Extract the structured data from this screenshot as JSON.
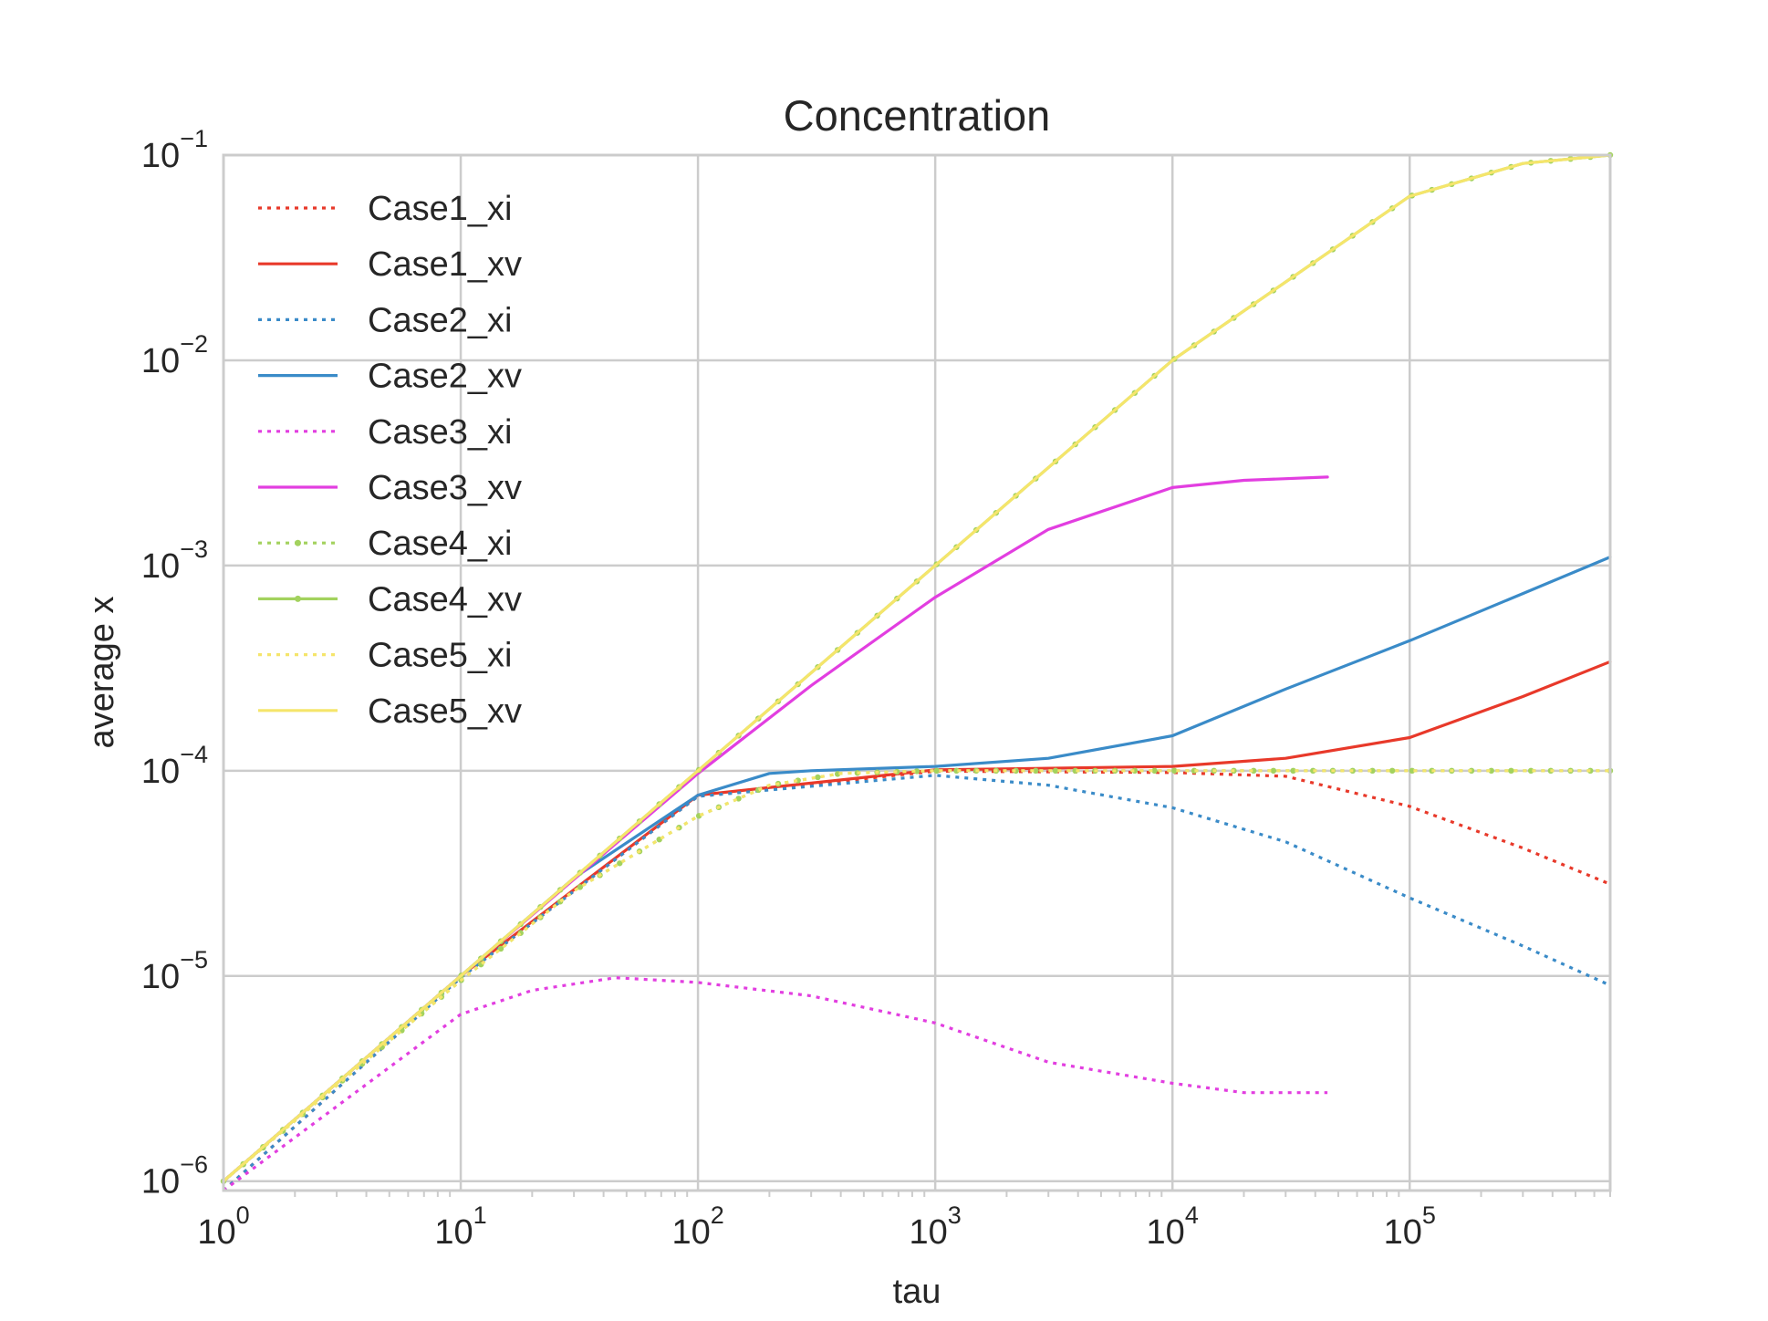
{
  "chart_data": {
    "type": "line",
    "title": "Concentration",
    "xlabel": "tau",
    "ylabel": "average x",
    "xscale": "log",
    "yscale": "log",
    "xlim": [
      1,
      700000
    ],
    "ylim": [
      9e-07,
      0.1
    ],
    "grid": true,
    "legend_position": "top-left",
    "x_ticks": [
      {
        "base": "10",
        "exp": "0"
      },
      {
        "base": "10",
        "exp": "1"
      },
      {
        "base": "10",
        "exp": "2"
      },
      {
        "base": "10",
        "exp": "3"
      },
      {
        "base": "10",
        "exp": "4"
      },
      {
        "base": "10",
        "exp": "5"
      }
    ],
    "y_ticks": [
      {
        "base": "10",
        "exp": "−6"
      },
      {
        "base": "10",
        "exp": "−5"
      },
      {
        "base": "10",
        "exp": "−4"
      },
      {
        "base": "10",
        "exp": "−3"
      },
      {
        "base": "10",
        "exp": "−2"
      },
      {
        "base": "10",
        "exp": "−1"
      }
    ],
    "series": [
      {
        "name": "Case1_xi",
        "color": "#e8392a",
        "style": "dotted",
        "marker": false,
        "x": [
          1,
          10,
          100,
          1000,
          10000,
          30000,
          100000,
          300000,
          700000
        ],
        "y": [
          9e-07,
          9.8e-06,
          7.5e-05,
          9.95e-05,
          9.8e-05,
          9.4e-05,
          6.7e-05,
          4.2e-05,
          2.8e-05
        ]
      },
      {
        "name": "Case1_xv",
        "color": "#e8392a",
        "style": "solid",
        "marker": false,
        "x": [
          1,
          10,
          100,
          1000,
          10000,
          30000,
          100000,
          300000,
          700000
        ],
        "y": [
          1e-06,
          1e-05,
          7.6e-05,
          0.000101,
          0.000105,
          0.000115,
          0.000145,
          0.00023,
          0.00034
        ]
      },
      {
        "name": "Case2_xi",
        "color": "#3a8bc8",
        "style": "dotted",
        "marker": false,
        "x": [
          1,
          10,
          100,
          1000,
          3000,
          10000,
          30000,
          100000,
          300000,
          700000
        ],
        "y": [
          9e-07,
          9.8e-06,
          7.5e-05,
          9.5e-05,
          8.5e-05,
          6.6e-05,
          4.5e-05,
          2.4e-05,
          1.4e-05,
          9e-06
        ]
      },
      {
        "name": "Case2_xv",
        "color": "#3a8bc8",
        "style": "solid",
        "marker": false,
        "x": [
          1,
          10,
          30,
          100,
          200,
          300,
          1000,
          3000,
          10000,
          30000,
          100000,
          300000,
          700000
        ],
        "y": [
          1e-06,
          1e-05,
          3e-05,
          7.6e-05,
          9.7e-05,
          0.0001,
          0.000105,
          0.000115,
          0.000148,
          0.00025,
          0.00043,
          0.00073,
          0.0011
        ]
      },
      {
        "name": "Case3_xi",
        "color": "#e23ee0",
        "style": "dotted",
        "marker": false,
        "x": [
          1,
          10,
          20,
          45,
          100,
          300,
          1000,
          3000,
          10000,
          20000,
          45000
        ],
        "y": [
          9e-07,
          6.5e-06,
          8.5e-06,
          9.8e-06,
          9.3e-06,
          8e-06,
          5.9e-06,
          3.8e-06,
          3e-06,
          2.7e-06,
          2.7e-06
        ]
      },
      {
        "name": "Case3_xv",
        "color": "#e23ee0",
        "style": "solid",
        "marker": false,
        "x": [
          1,
          10,
          100,
          300,
          1000,
          3000,
          10000,
          20000,
          45000
        ],
        "y": [
          1e-06,
          1e-05,
          9.7e-05,
          0.00026,
          0.0007,
          0.0015,
          0.0024,
          0.0026,
          0.0027
        ]
      },
      {
        "name": "Case4_xi",
        "color": "#a3d25e",
        "style": "dotted",
        "marker": true,
        "x": [
          1,
          10,
          30,
          100,
          200,
          400,
          1000,
          10000,
          100000,
          700000
        ],
        "y": [
          1e-06,
          9.5e-06,
          2.6e-05,
          6e-05,
          8.5e-05,
          9.7e-05,
          0.0001,
          0.0001,
          0.0001,
          0.0001
        ]
      },
      {
        "name": "Case4_xv",
        "color": "#a3d25e",
        "style": "solid",
        "marker": true,
        "x": [
          1,
          10,
          100,
          1000,
          10000,
          100000,
          300000,
          700000
        ],
        "y": [
          1e-06,
          1e-05,
          0.0001,
          0.001,
          0.01,
          0.063,
          0.091,
          0.1
        ]
      },
      {
        "name": "Case5_xi",
        "color": "#f5e56b",
        "style": "dotted",
        "marker": false,
        "x": [
          1,
          10,
          30,
          100,
          200,
          400,
          1000,
          10000,
          100000,
          700000
        ],
        "y": [
          1e-06,
          9.5e-06,
          2.6e-05,
          6e-05,
          8.5e-05,
          9.7e-05,
          0.0001,
          0.0001,
          0.0001,
          0.0001
        ]
      },
      {
        "name": "Case5_xv",
        "color": "#f5e56b",
        "style": "solid",
        "marker": false,
        "x": [
          1,
          10,
          100,
          1000,
          10000,
          100000,
          300000,
          700000
        ],
        "y": [
          1e-06,
          1e-05,
          0.0001,
          0.001,
          0.01,
          0.063,
          0.091,
          0.1
        ]
      }
    ]
  }
}
